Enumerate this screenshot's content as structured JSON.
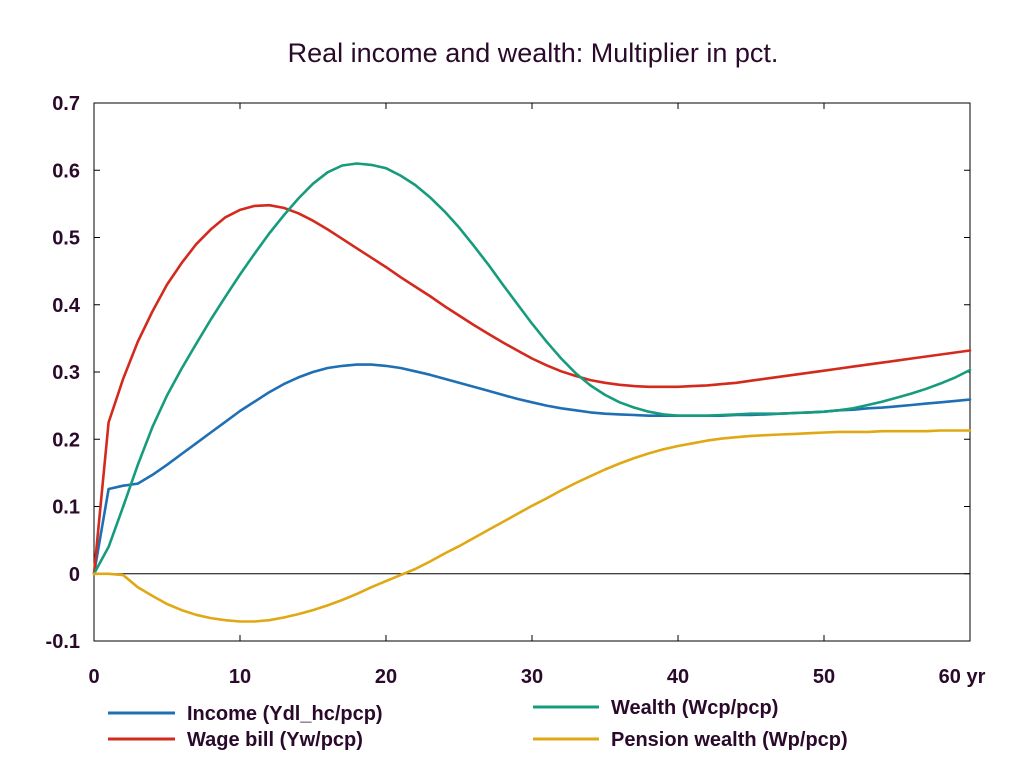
{
  "chart_data": {
    "type": "line",
    "title": "Real income and wealth: Multiplier in pct.",
    "xlim": [
      0,
      60
    ],
    "ylim": [
      -0.1,
      0.7
    ],
    "x_unit_label": "yr",
    "x_ticks": [
      0,
      10,
      20,
      30,
      40,
      50,
      60
    ],
    "y_ticks": [
      -0.1,
      0,
      0.1,
      0.2,
      0.3,
      0.4,
      0.5,
      0.6,
      0.7
    ],
    "grid": false,
    "zero_line": true,
    "legend_position": "bottom",
    "x": [
      0,
      1,
      2,
      3,
      4,
      5,
      6,
      7,
      8,
      9,
      10,
      11,
      12,
      13,
      14,
      15,
      16,
      17,
      18,
      19,
      20,
      21,
      22,
      23,
      24,
      25,
      26,
      27,
      28,
      29,
      30,
      31,
      32,
      33,
      34,
      35,
      36,
      37,
      38,
      39,
      40,
      41,
      42,
      43,
      44,
      45,
      46,
      47,
      48,
      49,
      50,
      51,
      52,
      53,
      54,
      55,
      56,
      57,
      58,
      59,
      60
    ],
    "series": [
      {
        "name": "Income (Ydl_hc/pcp)",
        "color": "#1f6fb5",
        "values": [
          0,
          0.126,
          0.131,
          0.134,
          0.147,
          0.162,
          0.178,
          0.194,
          0.21,
          0.226,
          0.242,
          0.256,
          0.27,
          0.282,
          0.292,
          0.3,
          0.306,
          0.309,
          0.311,
          0.311,
          0.309,
          0.306,
          0.301,
          0.296,
          0.29,
          0.284,
          0.278,
          0.272,
          0.266,
          0.26,
          0.255,
          0.25,
          0.246,
          0.243,
          0.24,
          0.238,
          0.237,
          0.236,
          0.235,
          0.235,
          0.235,
          0.235,
          0.235,
          0.235,
          0.236,
          0.236,
          0.237,
          0.238,
          0.239,
          0.24,
          0.241,
          0.243,
          0.244,
          0.246,
          0.247,
          0.249,
          0.251,
          0.253,
          0.255,
          0.257,
          0.259
        ]
      },
      {
        "name": "Wage bill (Yw/pcp)",
        "color": "#d42a1e",
        "values": [
          0,
          0.225,
          0.29,
          0.345,
          0.39,
          0.43,
          0.462,
          0.49,
          0.512,
          0.53,
          0.541,
          0.547,
          0.548,
          0.544,
          0.536,
          0.525,
          0.512,
          0.498,
          0.484,
          0.47,
          0.456,
          0.441,
          0.427,
          0.413,
          0.398,
          0.384,
          0.37,
          0.357,
          0.344,
          0.332,
          0.32,
          0.31,
          0.301,
          0.294,
          0.288,
          0.284,
          0.281,
          0.279,
          0.278,
          0.278,
          0.278,
          0.279,
          0.28,
          0.282,
          0.284,
          0.287,
          0.29,
          0.293,
          0.296,
          0.299,
          0.302,
          0.305,
          0.308,
          0.311,
          0.314,
          0.317,
          0.32,
          0.323,
          0.326,
          0.329,
          0.332
        ]
      },
      {
        "name": "Wealth (Wcp/pcp)",
        "color": "#169c7c",
        "values": [
          0,
          0.04,
          0.1,
          0.162,
          0.218,
          0.265,
          0.305,
          0.342,
          0.378,
          0.412,
          0.445,
          0.476,
          0.506,
          0.533,
          0.558,
          0.58,
          0.597,
          0.607,
          0.61,
          0.608,
          0.603,
          0.592,
          0.578,
          0.56,
          0.539,
          0.515,
          0.488,
          0.46,
          0.43,
          0.401,
          0.372,
          0.345,
          0.32,
          0.298,
          0.28,
          0.266,
          0.255,
          0.247,
          0.241,
          0.237,
          0.235,
          0.235,
          0.235,
          0.236,
          0.237,
          0.238,
          0.238,
          0.238,
          0.239,
          0.24,
          0.241,
          0.243,
          0.246,
          0.251,
          0.256,
          0.262,
          0.268,
          0.275,
          0.283,
          0.292,
          0.303
        ]
      },
      {
        "name": "Pension wealth (Wp/pcp)",
        "color": "#e0a814",
        "values": [
          0,
          0,
          -0.002,
          -0.02,
          -0.033,
          -0.045,
          -0.054,
          -0.061,
          -0.066,
          -0.069,
          -0.071,
          -0.071,
          -0.069,
          -0.065,
          -0.06,
          -0.054,
          -0.047,
          -0.039,
          -0.03,
          -0.02,
          -0.011,
          -0.002,
          0.007,
          0.018,
          0.03,
          0.041,
          0.053,
          0.065,
          0.077,
          0.089,
          0.101,
          0.112,
          0.124,
          0.135,
          0.145,
          0.155,
          0.164,
          0.172,
          0.179,
          0.185,
          0.19,
          0.194,
          0.198,
          0.201,
          0.203,
          0.205,
          0.206,
          0.207,
          0.208,
          0.209,
          0.21,
          0.211,
          0.211,
          0.211,
          0.212,
          0.212,
          0.212,
          0.212,
          0.213,
          0.213,
          0.213
        ]
      }
    ]
  }
}
